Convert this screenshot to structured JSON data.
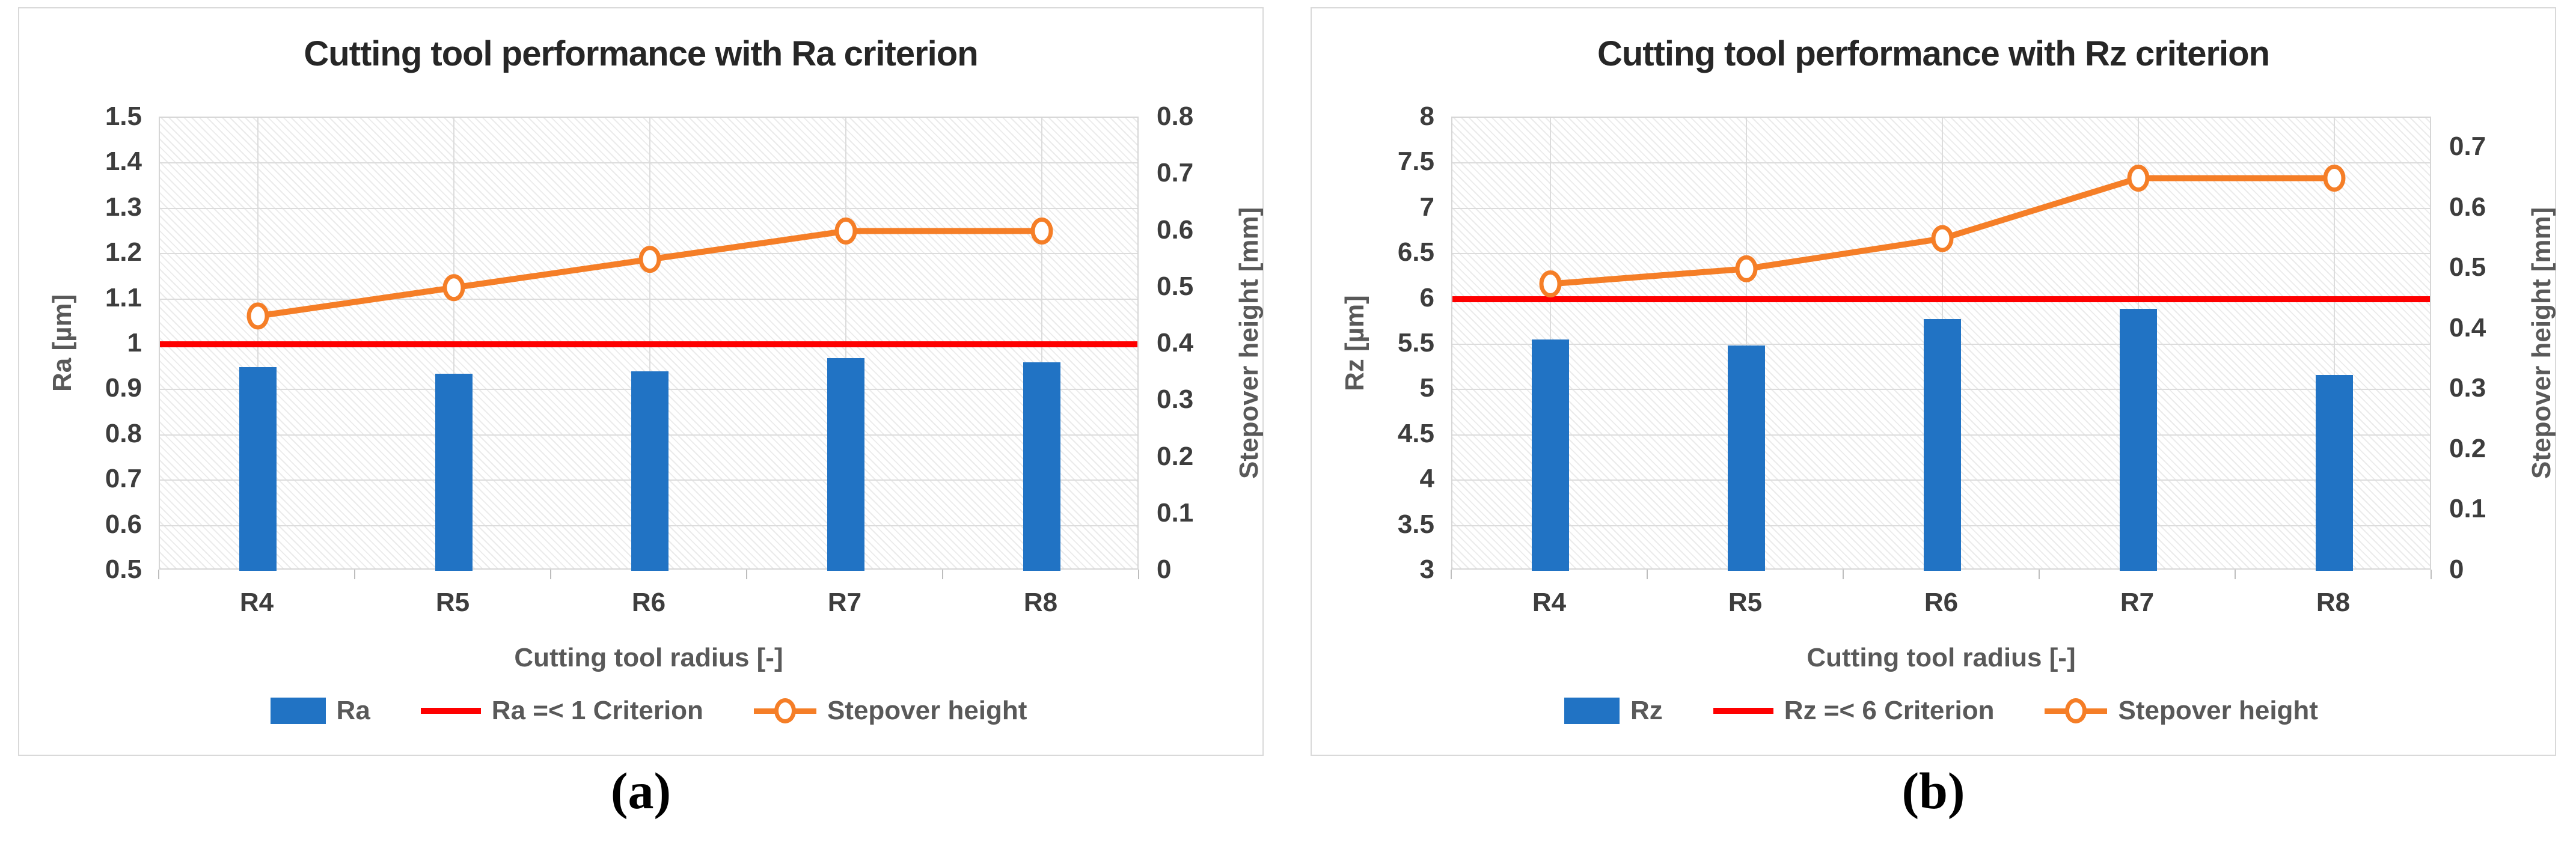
{
  "page": {
    "background": "#FFFFFF"
  },
  "colors": {
    "bar": "#2173C4",
    "stepover_line": "#F57E27",
    "criterion": "#FE0000",
    "grid": "#DCDCDC",
    "panel_border": "#D9D9D9",
    "tick_text": "#3D3D3D",
    "axis_text": "#595959",
    "title_text": "#262626",
    "background": "#FFFFFF"
  },
  "chart_data": [
    {
      "id": "a",
      "type": "bar",
      "caption": "(a)",
      "title": "Cutting tool performance with Ra criterion",
      "grid": true,
      "legend_position": "bottom",
      "x": {
        "title": "Cutting tool radius [-]",
        "categories": [
          "R4",
          "R5",
          "R6",
          "R7",
          "R8"
        ]
      },
      "y_left": {
        "title": "Ra [µm]",
        "min": 0.5,
        "max": 1.5,
        "ticks": [
          "1.5",
          "1.4",
          "1.3",
          "1.2",
          "1.1",
          "1",
          "0.9",
          "0.8",
          "0.7",
          "0.6",
          "0.5"
        ]
      },
      "y_right": {
        "title": "Stepover height [mm]",
        "min": 0,
        "max": 0.8,
        "ticks": [
          "0.8",
          "0.7",
          "0.6",
          "0.5",
          "0.4",
          "0.3",
          "0.2",
          "0.1",
          "0"
        ]
      },
      "series": {
        "bars": {
          "name": "Ra",
          "axis": "left",
          "color": "#2173C4",
          "values": [
            0.95,
            0.935,
            0.94,
            0.97,
            0.96
          ]
        },
        "criterion": {
          "name": "Ra =< 1 Criterion",
          "axis": "left",
          "color": "#FE0000",
          "value": 1
        },
        "line": {
          "name": "Stepover height",
          "axis": "right",
          "color": "#F57E27",
          "values": [
            0.45,
            0.5,
            0.55,
            0.6,
            0.6
          ]
        }
      },
      "legend": [
        {
          "swatch": "bar",
          "label": "Ra"
        },
        {
          "swatch": "line",
          "label": "Ra =< 1 Criterion"
        },
        {
          "swatch": "line-marker",
          "label": "Stepover height"
        }
      ]
    },
    {
      "id": "b",
      "type": "bar",
      "caption": "(b)",
      "title": "Cutting tool performance with Rz criterion",
      "grid": true,
      "legend_position": "bottom",
      "x": {
        "title": "Cutting tool radius [-]",
        "categories": [
          "R4",
          "R5",
          "R6",
          "R7",
          "R8"
        ]
      },
      "y_left": {
        "title": "Rz [µm]",
        "min": 3,
        "max": 8,
        "ticks": [
          "8",
          "7.5",
          "7",
          "6.5",
          "6",
          "5.5",
          "5",
          "4.5",
          "4",
          "3.5",
          "3"
        ]
      },
      "y_right": {
        "title": "Stepover height [mm]",
        "min": 0,
        "max": 0.75,
        "ticks": [
          "0.7",
          "0.6",
          "0.5",
          "0.4",
          "0.3",
          "0.2",
          "0.1",
          "0"
        ]
      },
      "series": {
        "bars": {
          "name": "Rz",
          "axis": "left",
          "color": "#2173C4",
          "values": [
            5.55,
            5.49,
            5.78,
            5.89,
            5.16
          ]
        },
        "criterion": {
          "name": "Rz =< 6 Criterion",
          "axis": "left",
          "color": "#FE0000",
          "value": 6
        },
        "line": {
          "name": "Stepover height",
          "axis": "right",
          "color": "#F57E27",
          "values": [
            0.475,
            0.5,
            0.55,
            0.65,
            0.65
          ]
        }
      },
      "legend": [
        {
          "swatch": "bar",
          "label": "Rz"
        },
        {
          "swatch": "line",
          "label": "Rz =< 6 Criterion"
        },
        {
          "swatch": "line-marker",
          "label": "Stepover height"
        }
      ]
    }
  ]
}
